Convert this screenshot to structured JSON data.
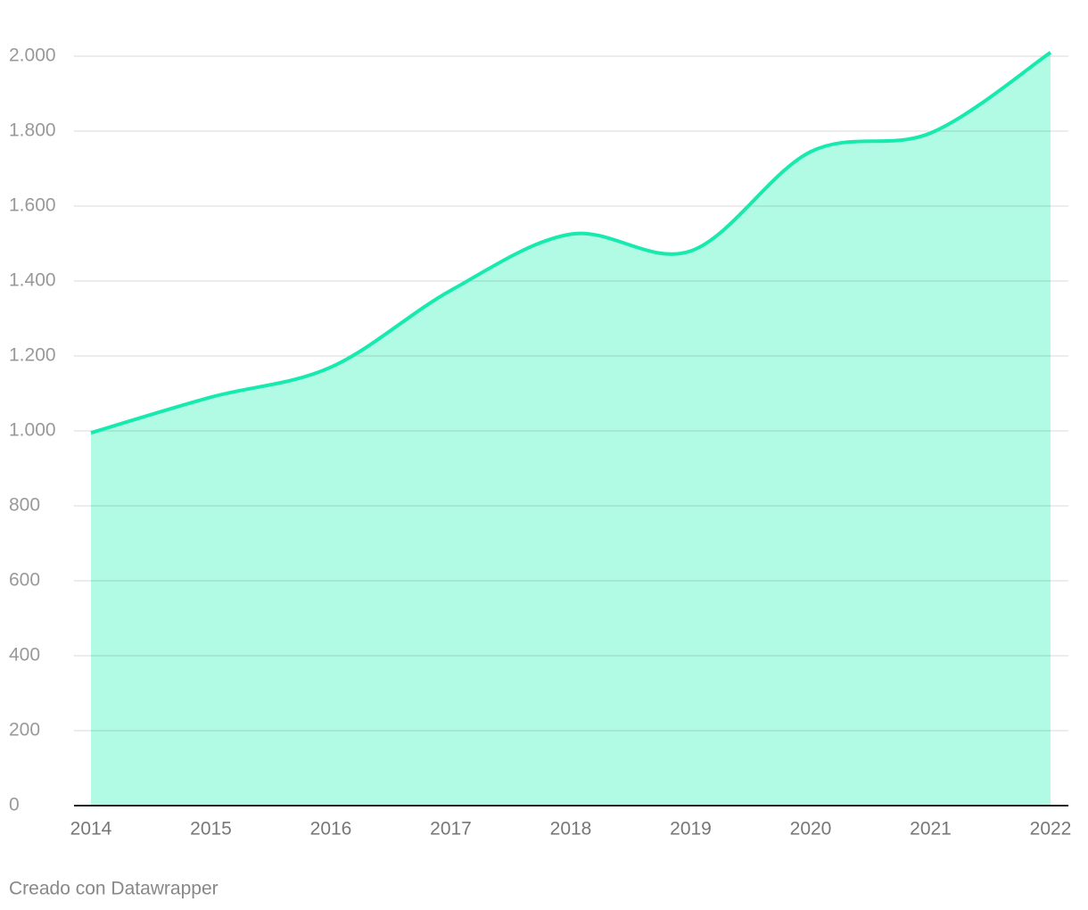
{
  "chart_data": {
    "type": "area",
    "x": [
      2014,
      2015,
      2016,
      2017,
      2018,
      2019,
      2020,
      2021,
      2022
    ],
    "xlim": [
      2014,
      2022
    ],
    "xticks": [
      2014,
      2015,
      2016,
      2017,
      2018,
      2019,
      2020,
      2021,
      2022
    ],
    "series": [
      {
        "color": "#17eaae",
        "fill": "#b1fbe4",
        "values": [
          995,
          1090,
          1170,
          1375,
          1525,
          1480,
          1745,
          1795,
          2010
        ]
      }
    ],
    "ylim": [
      0,
      2000
    ],
    "yticks": [
      0,
      200,
      400,
      600,
      800,
      {
        "value": 1000,
        "label": "1.000"
      },
      {
        "value": 1200,
        "label": "1.200"
      },
      {
        "value": 1400,
        "label": "1.400"
      },
      {
        "value": 1600,
        "label": "1.600"
      },
      {
        "value": 1800,
        "label": "1.800"
      },
      {
        "value": 2000,
        "label": "2.000"
      }
    ],
    "grid": true,
    "credit": "Creado con Datawrapper"
  }
}
